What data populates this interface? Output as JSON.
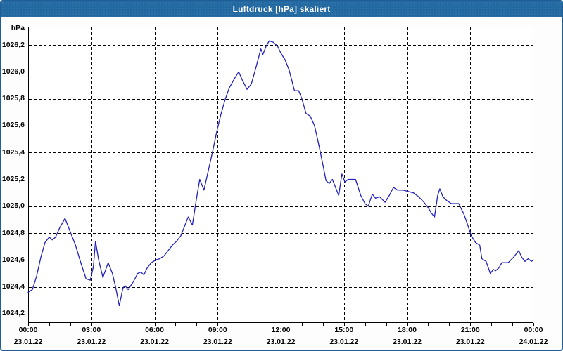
{
  "window": {
    "title": "Luftdruck [hPa] skaliert"
  },
  "colors": {
    "titlebar_bg": "#2269a1",
    "window_border": "#1f5e96",
    "content_bg": "#fdfdfd",
    "plot_bg": "#ffffff",
    "grid": "#000000",
    "line": "#2222bb",
    "text": "#000000"
  },
  "chart_data": {
    "type": "line",
    "title": "Luftdruck [hPa] skaliert",
    "ylabel": "hPa",
    "xlabel": "",
    "grid": true,
    "legend_position": "none",
    "xlim_hours": [
      0,
      24
    ],
    "ylim": [
      1024.132,
      1026.336
    ],
    "minor_xtick_step_hours": 1,
    "yticks": [
      {
        "value": 1024.2,
        "label": "1024,2"
      },
      {
        "value": 1024.4,
        "label": "1024,4"
      },
      {
        "value": 1024.6,
        "label": "1024,6"
      },
      {
        "value": 1024.8,
        "label": "1024,8"
      },
      {
        "value": 1025.0,
        "label": "1025,0"
      },
      {
        "value": 1025.2,
        "label": "1025,2"
      },
      {
        "value": 1025.4,
        "label": "1025,4"
      },
      {
        "value": 1025.6,
        "label": "1025,6"
      },
      {
        "value": 1025.8,
        "label": "1025,8"
      },
      {
        "value": 1026.0,
        "label": "1026,0"
      },
      {
        "value": 1026.2,
        "label": "1026,2"
      }
    ],
    "xticks": [
      {
        "hour": 0,
        "time": "00:00",
        "date": "23.01.22"
      },
      {
        "hour": 3,
        "time": "03:00",
        "date": "23.01.22"
      },
      {
        "hour": 6,
        "time": "06:00",
        "date": "23.01.22"
      },
      {
        "hour": 9,
        "time": "09:00",
        "date": "23.01.22"
      },
      {
        "hour": 12,
        "time": "12:00",
        "date": "23.01.22"
      },
      {
        "hour": 15,
        "time": "15:00",
        "date": "23.01.22"
      },
      {
        "hour": 18,
        "time": "18:00",
        "date": "23.01.22"
      },
      {
        "hour": 21,
        "time": "21:00",
        "date": "23.01.22"
      },
      {
        "hour": 24,
        "time": "00:00",
        "date": "24.01.22"
      }
    ],
    "series": [
      {
        "name": "Luftdruck",
        "points": [
          [
            0.0,
            1024.36
          ],
          [
            0.2,
            1024.38
          ],
          [
            0.4,
            1024.48
          ],
          [
            0.6,
            1024.62
          ],
          [
            0.8,
            1024.73
          ],
          [
            1.0,
            1024.77
          ],
          [
            1.15,
            1024.75
          ],
          [
            1.3,
            1024.77
          ],
          [
            1.5,
            1024.84
          ],
          [
            1.75,
            1024.91
          ],
          [
            2.0,
            1024.81
          ],
          [
            2.25,
            1024.71
          ],
          [
            2.5,
            1024.58
          ],
          [
            2.75,
            1024.46
          ],
          [
            2.95,
            1024.45
          ],
          [
            3.1,
            1024.55
          ],
          [
            3.2,
            1024.74
          ],
          [
            3.35,
            1024.6
          ],
          [
            3.55,
            1024.47
          ],
          [
            3.8,
            1024.58
          ],
          [
            4.0,
            1024.5
          ],
          [
            4.15,
            1024.4
          ],
          [
            4.33,
            1024.26
          ],
          [
            4.5,
            1024.39
          ],
          [
            4.6,
            1024.41
          ],
          [
            4.75,
            1024.38
          ],
          [
            5.0,
            1024.44
          ],
          [
            5.2,
            1024.5
          ],
          [
            5.35,
            1024.51
          ],
          [
            5.5,
            1024.49
          ],
          [
            5.65,
            1024.54
          ],
          [
            5.85,
            1024.58
          ],
          [
            6.05,
            1024.6
          ],
          [
            6.25,
            1024.61
          ],
          [
            6.45,
            1024.63
          ],
          [
            6.65,
            1024.67
          ],
          [
            6.85,
            1024.71
          ],
          [
            7.05,
            1024.74
          ],
          [
            7.25,
            1024.78
          ],
          [
            7.45,
            1024.86
          ],
          [
            7.6,
            1024.92
          ],
          [
            7.8,
            1024.86
          ],
          [
            8.0,
            1025.06
          ],
          [
            8.15,
            1025.2
          ],
          [
            8.35,
            1025.12
          ],
          [
            8.55,
            1025.26
          ],
          [
            8.75,
            1025.4
          ],
          [
            8.95,
            1025.55
          ],
          [
            9.15,
            1025.68
          ],
          [
            9.35,
            1025.79
          ],
          [
            9.55,
            1025.88
          ],
          [
            9.8,
            1025.95
          ],
          [
            10.0,
            1026.0
          ],
          [
            10.2,
            1025.93
          ],
          [
            10.4,
            1025.87
          ],
          [
            10.6,
            1025.91
          ],
          [
            10.8,
            1026.02
          ],
          [
            10.95,
            1026.11
          ],
          [
            11.05,
            1026.17
          ],
          [
            11.15,
            1026.13
          ],
          [
            11.3,
            1026.19
          ],
          [
            11.45,
            1026.23
          ],
          [
            11.65,
            1026.22
          ],
          [
            11.85,
            1026.19
          ],
          [
            12.0,
            1026.14
          ],
          [
            12.2,
            1026.09
          ],
          [
            12.4,
            1026.01
          ],
          [
            12.55,
            1025.92
          ],
          [
            12.65,
            1025.86
          ],
          [
            12.85,
            1025.86
          ],
          [
            13.0,
            1025.8
          ],
          [
            13.2,
            1025.69
          ],
          [
            13.4,
            1025.67
          ],
          [
            13.6,
            1025.6
          ],
          [
            13.8,
            1025.46
          ],
          [
            14.0,
            1025.31
          ],
          [
            14.15,
            1025.19
          ],
          [
            14.3,
            1025.17
          ],
          [
            14.45,
            1025.2
          ],
          [
            14.6,
            1025.14
          ],
          [
            14.75,
            1025.08
          ],
          [
            14.9,
            1025.24
          ],
          [
            15.05,
            1025.18
          ],
          [
            15.2,
            1025.2
          ],
          [
            15.55,
            1025.2
          ],
          [
            15.8,
            1025.08
          ],
          [
            16.0,
            1025.02
          ],
          [
            16.15,
            1025.0
          ],
          [
            16.35,
            1025.09
          ],
          [
            16.5,
            1025.06
          ],
          [
            16.7,
            1025.07
          ],
          [
            16.95,
            1025.03
          ],
          [
            17.15,
            1025.08
          ],
          [
            17.35,
            1025.14
          ],
          [
            17.55,
            1025.12
          ],
          [
            17.8,
            1025.12
          ],
          [
            18.05,
            1025.11
          ],
          [
            18.3,
            1025.1
          ],
          [
            18.55,
            1025.07
          ],
          [
            18.8,
            1025.03
          ],
          [
            19.0,
            1024.99
          ],
          [
            19.15,
            1024.95
          ],
          [
            19.3,
            1024.92
          ],
          [
            19.45,
            1025.08
          ],
          [
            19.55,
            1025.13
          ],
          [
            19.7,
            1025.07
          ],
          [
            19.9,
            1025.04
          ],
          [
            20.1,
            1025.02
          ],
          [
            20.45,
            1025.02
          ],
          [
            20.7,
            1024.94
          ],
          [
            20.9,
            1024.85
          ],
          [
            21.05,
            1024.78
          ],
          [
            21.25,
            1024.73
          ],
          [
            21.45,
            1024.71
          ],
          [
            21.55,
            1024.61
          ],
          [
            21.75,
            1024.59
          ],
          [
            21.95,
            1024.5
          ],
          [
            22.1,
            1024.53
          ],
          [
            22.2,
            1024.52
          ],
          [
            22.35,
            1024.54
          ],
          [
            22.5,
            1024.58
          ],
          [
            22.8,
            1024.58
          ],
          [
            23.05,
            1024.62
          ],
          [
            23.3,
            1024.67
          ],
          [
            23.45,
            1024.62
          ],
          [
            23.6,
            1024.59
          ],
          [
            23.75,
            1024.61
          ],
          [
            23.9,
            1024.59
          ],
          [
            24.0,
            1024.6
          ]
        ]
      }
    ]
  }
}
